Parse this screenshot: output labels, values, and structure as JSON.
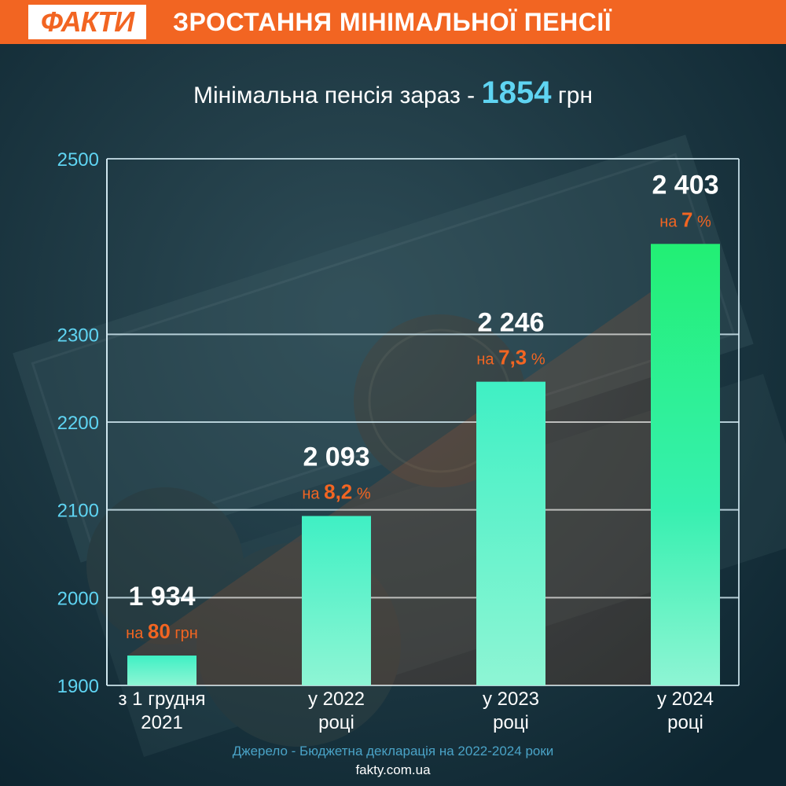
{
  "header": {
    "logo": "ФАКТИ",
    "title": "ЗРОСТАННЯ МІНІМАЛЬНОЇ ПЕНСІЇ"
  },
  "subtitle": {
    "prefix": "Мінімальна пенсія зараз - ",
    "value": "1854",
    "unit": " грн"
  },
  "footer": {
    "source": "Джерело - Бюджетна декларація на 2022-2024 роки",
    "site": "fakty.com.ua"
  },
  "colors": {
    "accent": "#f26522",
    "highlight": "#5fd4f2",
    "background": "#13303d",
    "bar_top": "#3ff0c4",
    "bar_bottom": "#8ef5d4",
    "bar_last_top": "#22ef74"
  },
  "chart_data": {
    "type": "bar",
    "categories": [
      [
        "з 1 грудня",
        "2021"
      ],
      [
        "у 2022",
        "році"
      ],
      [
        "у 2023",
        "році"
      ],
      [
        "у 2024",
        "році"
      ]
    ],
    "values": [
      1934,
      2093,
      2246,
      2403
    ],
    "value_labels": [
      "1 934",
      "2 093",
      "2 246",
      "2 403"
    ],
    "increase_labels": [
      {
        "prefix": "на ",
        "value": "80",
        "unit": " грн"
      },
      {
        "prefix": "на ",
        "value": "8,2",
        "unit": " %"
      },
      {
        "prefix": "на ",
        "value": "7,3",
        "unit": " %"
      },
      {
        "prefix": "на ",
        "value": "7",
        "unit": " %"
      }
    ],
    "yticks": [
      1900,
      2000,
      2100,
      2200,
      2300,
      2500
    ],
    "ylim": [
      1900,
      2500
    ],
    "grid": true
  }
}
